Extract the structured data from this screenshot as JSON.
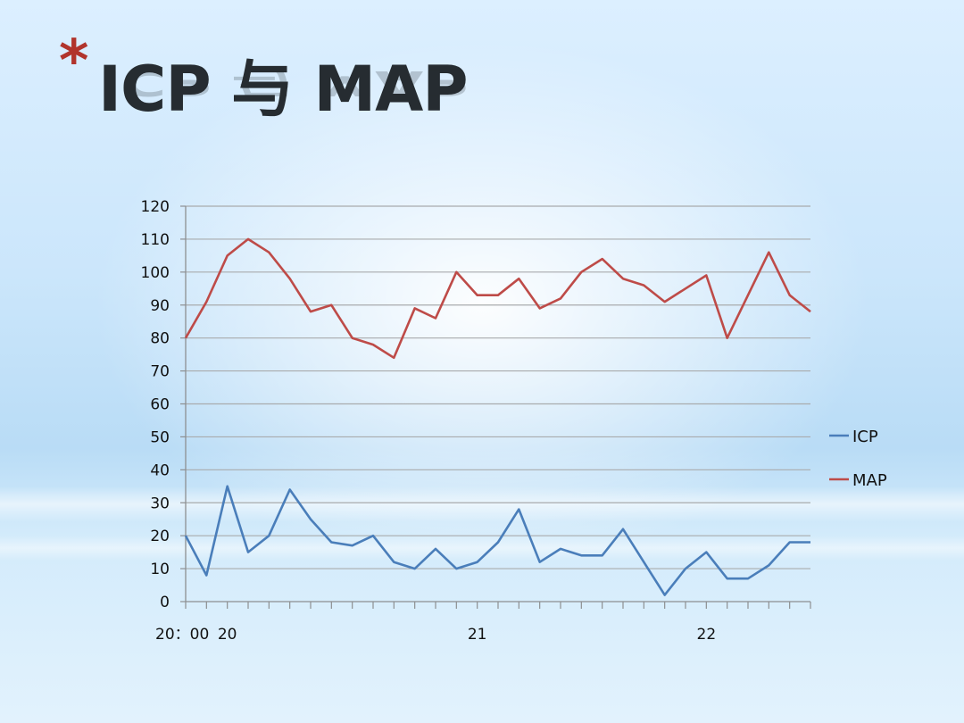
{
  "slide": {
    "star": "*",
    "title": "ICP 与 MAP"
  },
  "chart_data": {
    "type": "line",
    "x_tick_labels": [
      "20：00",
      "20",
      "21",
      "22"
    ],
    "x_tick_label_positions": [
      0,
      2,
      14,
      25
    ],
    "ylim": [
      0,
      120
    ],
    "yticks": [
      0,
      10,
      20,
      30,
      40,
      50,
      60,
      70,
      80,
      90,
      100,
      110,
      120
    ],
    "grid": true,
    "legend": "right",
    "series": [
      {
        "name": "ICP",
        "color": "#4a7eba",
        "values": [
          20,
          8,
          35,
          15,
          20,
          34,
          25,
          18,
          17,
          20,
          12,
          10,
          16,
          10,
          12,
          18,
          28,
          12,
          16,
          14,
          14,
          22,
          12,
          2,
          10,
          15,
          7,
          7,
          11,
          18,
          18
        ]
      },
      {
        "name": "MAP",
        "color": "#be4b48",
        "values": [
          80,
          91,
          105,
          110,
          106,
          98,
          88,
          90,
          80,
          78,
          74,
          89,
          86,
          100,
          93,
          93,
          98,
          89,
          92,
          100,
          104,
          98,
          96,
          91,
          95,
          99,
          80,
          93,
          106,
          93,
          88
        ]
      }
    ]
  }
}
